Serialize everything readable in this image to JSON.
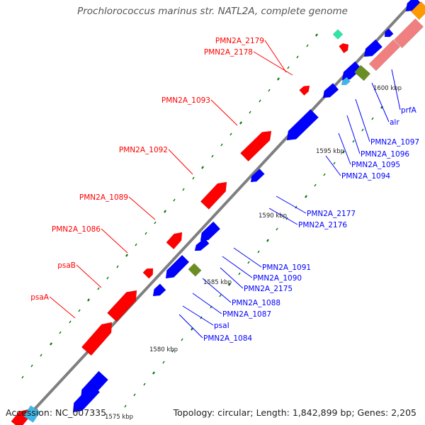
{
  "title": "Prochlorococcus marinus str. NATL2A, complete genome",
  "footer": {
    "accession": "Accession: NC_007335",
    "topology": "Topology: circular; Length: 1,842,899 bp; Genes: 2,205"
  },
  "colors": {
    "backbone": "#7f7f7f",
    "forward": "#ff0000",
    "reverse": "#0000ff",
    "pseudo_green": "#6b8e23",
    "rna_teal": "#2ee6a6",
    "light_blue": "#3fb6e8",
    "pink": "#f08080",
    "orange": "#ff9900",
    "tick": "#007700"
  },
  "scale_labels": [
    "1575 kbp",
    "1580 kbp",
    "1585 kbp",
    "1590 kbp",
    "1595 kbp",
    "1600 kbp"
  ],
  "forward_labels": [
    "PMN2A_2179",
    "PMN2A_2178",
    "PMN2A_1093",
    "PMN2A_1092",
    "PMN2A_1089",
    "PMN2A_1086",
    "psaB",
    "psaA"
  ],
  "reverse_labels": [
    "prfA",
    "alr",
    "PMN2A_1097",
    "PMN2A_1096",
    "PMN2A_1095",
    "PMN2A_1094",
    "PMN2A_2177",
    "PMN2A_2176",
    "PMN2A_1091",
    "PMN2A_1090",
    "PMN2A_2175",
    "PMN2A_1088",
    "PMN2A_1087",
    "psaI",
    "PMN2A_1084"
  ]
}
